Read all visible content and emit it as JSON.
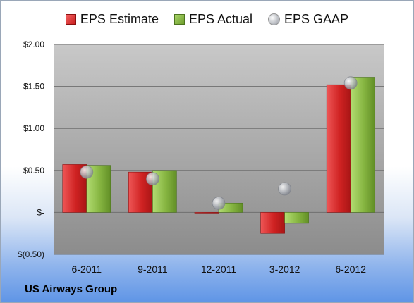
{
  "company": "US Airways Group",
  "legend": {
    "estimate": "EPS Estimate",
    "actual": "EPS Actual",
    "gaap": "EPS GAAP"
  },
  "colors": {
    "estimate": "#d42a2a",
    "actual": "#8dbb47",
    "gaap": "#b9bcc2",
    "plot_bg_top": "#c7c7c7",
    "plot_bg_bottom": "#8d8d8d"
  },
  "chart_data": {
    "type": "bar",
    "categories": [
      "6-2011",
      "9-2011",
      "12-2011",
      "3-2012",
      "6-2012"
    ],
    "series": [
      {
        "name": "EPS Estimate",
        "kind": "bar",
        "values": [
          0.57,
          0.48,
          0.0,
          -0.25,
          1.52
        ]
      },
      {
        "name": "EPS Actual",
        "kind": "bar",
        "values": [
          0.56,
          0.5,
          0.11,
          -0.13,
          1.61
        ]
      },
      {
        "name": "EPS GAAP",
        "kind": "marker",
        "values": [
          0.48,
          0.4,
          0.11,
          0.28,
          1.54
        ]
      }
    ],
    "ylim": [
      -0.5,
      2.0
    ],
    "yticks": [
      -0.5,
      0,
      0.5,
      1.0,
      1.5,
      2.0
    ],
    "ytick_labels": [
      "$(0.50)",
      "$-",
      "$0.50",
      "$1.00",
      "$1.50",
      "$2.00"
    ],
    "grid": true,
    "legend_position": "top"
  }
}
